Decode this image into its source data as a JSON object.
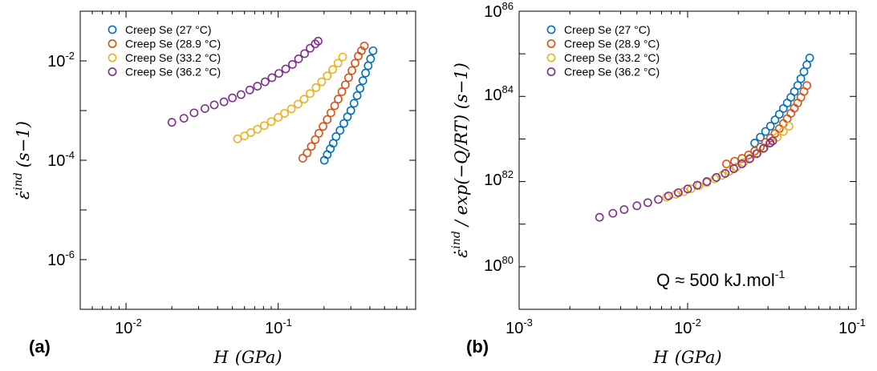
{
  "colors": {
    "series": [
      "#0072BD",
      "#D95319",
      "#EDB120",
      "#7E2F8E"
    ],
    "axis": "#000000",
    "background": "#ffffff"
  },
  "chart_data": [
    {
      "type": "scatter",
      "panel_label": "(a)",
      "xlabel_var": "H",
      "xlabel_unit": "(GPa)",
      "ylabel": "ε̇ ind (s−1)",
      "ylabel_var": "ε̇",
      "ylabel_sup": "ind",
      "ylabel_unit": "(s−1)",
      "xscale": "log",
      "yscale": "log",
      "xlim": [
        0.005,
        0.8
      ],
      "ylim": [
        1e-07,
        0.1
      ],
      "xtick_labels": [
        {
          "base": "10",
          "exp": "-2"
        },
        {
          "base": "10",
          "exp": "-1"
        }
      ],
      "ytick_labels": [
        {
          "base": "10",
          "exp": "-6"
        },
        {
          "base": "10",
          "exp": "-4"
        },
        {
          "base": "10",
          "exp": "-2"
        }
      ],
      "grid": false,
      "legend_position": "top-left",
      "series": [
        {
          "name": "Creep Se (27 °C)",
          "x": [
            0.201,
            0.21,
            0.22,
            0.23,
            0.24,
            0.255,
            0.27,
            0.285,
            0.3,
            0.315,
            0.33,
            0.345,
            0.36,
            0.375,
            0.39,
            0.405,
            0.42
          ],
          "y": [
            0.0001,
            0.00013,
            0.00017,
            0.00022,
            0.0003,
            0.0004,
            0.00055,
            0.00075,
            0.001,
            0.0014,
            0.002,
            0.0028,
            0.004,
            0.0057,
            0.008,
            0.011,
            0.016
          ]
        },
        {
          "name": "Creep Se (28.9 °C)",
          "x": [
            0.145,
            0.155,
            0.165,
            0.175,
            0.185,
            0.197,
            0.21,
            0.222,
            0.235,
            0.248,
            0.262,
            0.276,
            0.29,
            0.305,
            0.32,
            0.336,
            0.352,
            0.368
          ],
          "y": [
            0.00011,
            0.00014,
            0.00019,
            0.00026,
            0.00035,
            0.00048,
            0.00066,
            0.0009,
            0.00125,
            0.0017,
            0.0024,
            0.0033,
            0.0046,
            0.0064,
            0.009,
            0.0125,
            0.016,
            0.02
          ]
        },
        {
          "name": "Creep Se (33.2 °C)",
          "x": [
            0.054,
            0.06,
            0.066,
            0.073,
            0.081,
            0.09,
            0.1,
            0.11,
            0.122,
            0.135,
            0.148,
            0.162,
            0.177,
            0.193,
            0.21,
            0.228,
            0.247,
            0.265
          ],
          "y": [
            0.00027,
            0.00031,
            0.00036,
            0.00042,
            0.0005,
            0.0006,
            0.00073,
            0.00088,
            0.00108,
            0.00135,
            0.0017,
            0.0022,
            0.0029,
            0.0038,
            0.005,
            0.0067,
            0.009,
            0.012
          ]
        },
        {
          "name": "Creep Se (36.2 °C)",
          "x": [
            0.02,
            0.024,
            0.028,
            0.033,
            0.038,
            0.044,
            0.05,
            0.057,
            0.065,
            0.073,
            0.082,
            0.091,
            0.101,
            0.112,
            0.124,
            0.136,
            0.149,
            0.162,
            0.175,
            0.183
          ],
          "y": [
            0.00058,
            0.0007,
            0.0009,
            0.0011,
            0.0013,
            0.0015,
            0.0018,
            0.0021,
            0.0026,
            0.0031,
            0.0038,
            0.0046,
            0.0056,
            0.0069,
            0.0085,
            0.011,
            0.014,
            0.018,
            0.022,
            0.025
          ]
        }
      ]
    },
    {
      "type": "scatter",
      "panel_label": "(b)",
      "xlabel_var": "H",
      "xlabel_unit": "(GPa)",
      "ylabel": "ε̇ ind / exp(−Q/RT) (s−1)",
      "ylabel_var": "ε̇",
      "ylabel_sup": "ind",
      "ylabel_rest": "/ exp(−Q/RT) (s−1)",
      "xscale": "log",
      "yscale": "log",
      "xlim": [
        0.001,
        0.1
      ],
      "ylim": [
        1e+79,
        1e+86
      ],
      "xtick_labels": [
        {
          "base": "10",
          "exp": "-3"
        },
        {
          "base": "10",
          "exp": "-2"
        },
        {
          "base": "10",
          "exp": "-1"
        }
      ],
      "ytick_labels": [
        {
          "base": "10",
          "exp": "80"
        },
        {
          "base": "10",
          "exp": "82"
        },
        {
          "base": "10",
          "exp": "84"
        },
        {
          "base": "10",
          "exp": "86"
        }
      ],
      "grid": false,
      "legend_position": "top-left",
      "annotation": {
        "text": "Q ≈ 500 kJ.mol",
        "exp": "-1"
      },
      "series": [
        {
          "name": "Creep Se (27 °C)",
          "x": [
            0.025,
            0.027,
            0.029,
            0.031,
            0.033,
            0.035,
            0.037,
            0.039,
            0.041,
            0.043,
            0.045,
            0.047,
            0.049,
            0.051,
            0.053
          ],
          "y": [
            8e+82,
            1.1e+83,
            1.5e+83,
            2e+83,
            2.8e+83,
            3.8e+83,
            5.2e+83,
            7e+83,
            9.5e+83,
            1.3e+84,
            1.8e+84,
            2.6e+84,
            3.8e+84,
            5.5e+84,
            8e+84
          ]
        },
        {
          "name": "Creep Se (28.9 °C)",
          "x": [
            0.017,
            0.019,
            0.021,
            0.023,
            0.025,
            0.027,
            0.029,
            0.031,
            0.033,
            0.035,
            0.037,
            0.039,
            0.041,
            0.043,
            0.045,
            0.047,
            0.049,
            0.051
          ],
          "y": [
            2.6e+82,
            3e+82,
            3.5e+82,
            4.2e+82,
            5.2e+82,
            6.5e+82,
            8.3e+82,
            1.05e+83,
            1.35e+83,
            1.75e+83,
            2.3e+83,
            3e+83,
            4e+83,
            5.3e+83,
            7e+83,
            9.5e+83,
            1.3e+84,
            1.8e+84
          ]
        },
        {
          "name": "Creep Se (33.2 °C)",
          "x": [
            0.0075,
            0.0085,
            0.0095,
            0.0105,
            0.0117,
            0.013,
            0.0145,
            0.016,
            0.0177,
            0.0195,
            0.0215,
            0.0236,
            0.026,
            0.0285,
            0.031,
            0.034,
            0.037,
            0.04
          ],
          "y": [
            4.3e+81,
            5e+81,
            5.8e+81,
            6.8e+81,
            8e+81,
            9.5e+81,
            1.15e+82,
            1.4e+82,
            1.75e+82,
            2.2e+82,
            2.8e+82,
            3.6e+82,
            4.7e+82,
            6.2e+82,
            8.3e+82,
            1.1e+83,
            1.5e+83,
            2e+83
          ]
        },
        {
          "name": "Creep Se (36.2 °C)",
          "x": [
            0.003,
            0.0036,
            0.0042,
            0.005,
            0.0058,
            0.0067,
            0.0077,
            0.0088,
            0.01,
            0.0114,
            0.013,
            0.0148,
            0.0167,
            0.0188,
            0.021,
            0.0233,
            0.0257,
            0.0282,
            0.0308,
            0.032
          ],
          "y": [
            1.45e+81,
            1.8e+81,
            2.2e+81,
            2.7e+81,
            3.2e+81,
            3.8e+81,
            4.6e+81,
            5.5e+81,
            6.7e+81,
            8.2e+81,
            1e+82,
            1.25e+82,
            1.55e+82,
            2e+82,
            2.6e+82,
            3.4e+82,
            4.5e+82,
            6e+82,
            8e+82,
            9e+82
          ]
        }
      ]
    }
  ]
}
